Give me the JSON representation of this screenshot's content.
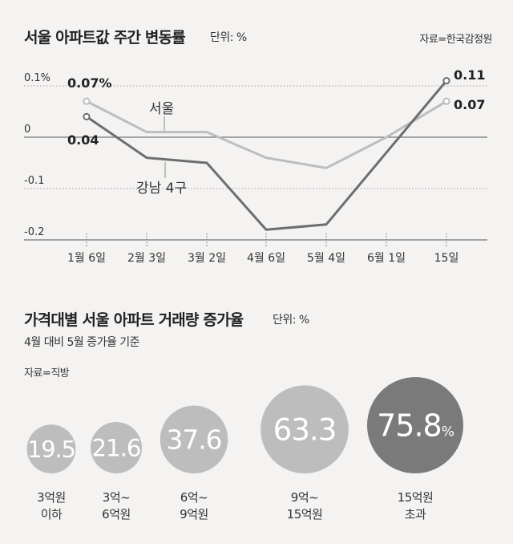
{
  "chart_data": [
    {
      "type": "line",
      "title": "서울 아파트값 주간 변동률",
      "unit_label": "단위: %",
      "source": "자료=한국감정원",
      "categories": [
        "1월 6일",
        "2월 3일",
        "3월 2일",
        "4월 6일",
        "5월 4일",
        "6월 1일",
        "15일"
      ],
      "y_ticks": [
        "0.1%",
        "0",
        "-0.1",
        "-0.2"
      ],
      "ylim": [
        -0.2,
        0.1
      ],
      "grid": true,
      "series": [
        {
          "name": "서울",
          "color": "#bdbdbd",
          "values": [
            0.07,
            0.01,
            0.01,
            -0.04,
            -0.06,
            0.0,
            0.07
          ],
          "start_label": "0.07%",
          "end_label": "0.07"
        },
        {
          "name": "강남 4구",
          "color": "#6e6e6e",
          "values": [
            0.04,
            -0.04,
            -0.05,
            -0.18,
            -0.17,
            -0.03,
            0.11
          ],
          "start_label": "0.04",
          "end_label": "0.11"
        }
      ]
    },
    {
      "type": "bubble",
      "title": "가격대별 서울 아파트 거래량 증가율",
      "unit_label": "단위: %",
      "subtitle": "4월 대비 5월 증가율 기준",
      "source": "자료=직방",
      "categories": [
        [
          "3억원",
          "이하"
        ],
        [
          "3억~",
          "6억원"
        ],
        [
          "6억~",
          "9억원"
        ],
        [
          "9억~",
          "15억원"
        ],
        [
          "15억원",
          "초과"
        ]
      ],
      "values": [
        19.5,
        21.6,
        37.6,
        63.3,
        75.8
      ],
      "value_labels": [
        "19.5",
        "21.6",
        "37.6",
        "63.3",
        "75.8"
      ],
      "last_suffix": "%",
      "colors": [
        "#bdbdbd",
        "#bdbdbd",
        "#bdbdbd",
        "#bdbdbd",
        "#7a7a7a"
      ]
    }
  ]
}
